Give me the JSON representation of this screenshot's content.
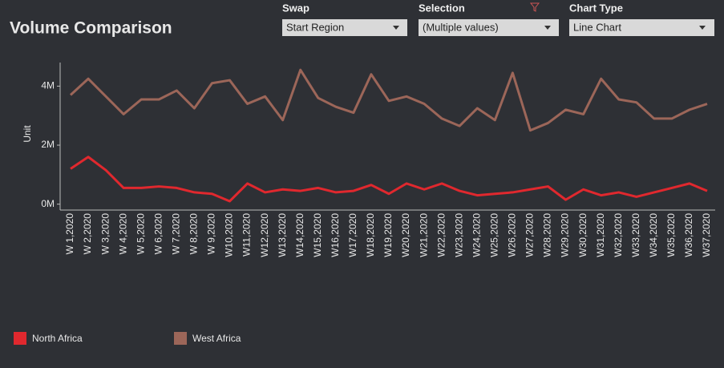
{
  "controls": [
    {
      "label": "Swap",
      "value": "Start Region"
    },
    {
      "label": "Selection",
      "value": "(Multiple values)"
    },
    {
      "label": "Chart Type",
      "value": "Line Chart"
    }
  ],
  "chart_data": {
    "type": "line",
    "title": "Volume Comparison",
    "y_label": "Unit",
    "categories": [
      "W 1,2020",
      "W 2,2020",
      "W 3,2020",
      "W 4,2020",
      "W 5,2020",
      "W 6,2020",
      "W 7,2020",
      "W 8,2020",
      "W 9,2020",
      "W10,2020",
      "W11,2020",
      "W12,2020",
      "W13,2020",
      "W14,2020",
      "W15,2020",
      "W16,2020",
      "W17,2020",
      "W18,2020",
      "W19,2020",
      "W20,2020",
      "W21,2020",
      "W22,2020",
      "W23,2020",
      "W24,2020",
      "W25,2020",
      "W26,2020",
      "W27,2020",
      "W28,2020",
      "W29,2020",
      "W30,2020",
      "W31,2020",
      "W32,2020",
      "W33,2020",
      "W34,2020",
      "W35,2020",
      "W36,2020",
      "W37,2020"
    ],
    "series": [
      {
        "name": "North Africa",
        "color": "#e0282e",
        "values": [
          1200000,
          1600000,
          1150000,
          550000,
          550000,
          600000,
          550000,
          400000,
          350000,
          100000,
          700000,
          400000,
          500000,
          450000,
          550000,
          400000,
          450000,
          650000,
          350000,
          700000,
          500000,
          700000,
          450000,
          300000,
          350000,
          400000,
          500000,
          600000,
          150000,
          500000,
          300000,
          400000,
          250000,
          400000,
          550000,
          700000,
          450000
        ]
      },
      {
        "name": "West Africa",
        "color": "#9c6659",
        "values": [
          3700000,
          4250000,
          3650000,
          3050000,
          3550000,
          3550000,
          3850000,
          3250000,
          4100000,
          4200000,
          3400000,
          3650000,
          2850000,
          4550000,
          3600000,
          3300000,
          3100000,
          4400000,
          3500000,
          3650000,
          3400000,
          2900000,
          2650000,
          3250000,
          2850000,
          4450000,
          2500000,
          2750000,
          3200000,
          3050000,
          4250000,
          3550000,
          3450000,
          2900000,
          2900000,
          3200000,
          3400000
        ]
      }
    ],
    "ylim": [
      -200000,
      4800000
    ],
    "yticks": [
      {
        "value": 0,
        "label": "0M"
      },
      {
        "value": 2000000,
        "label": "2M"
      },
      {
        "value": 4000000,
        "label": "4M"
      }
    ],
    "grid": false,
    "legend": "bottom-left"
  }
}
